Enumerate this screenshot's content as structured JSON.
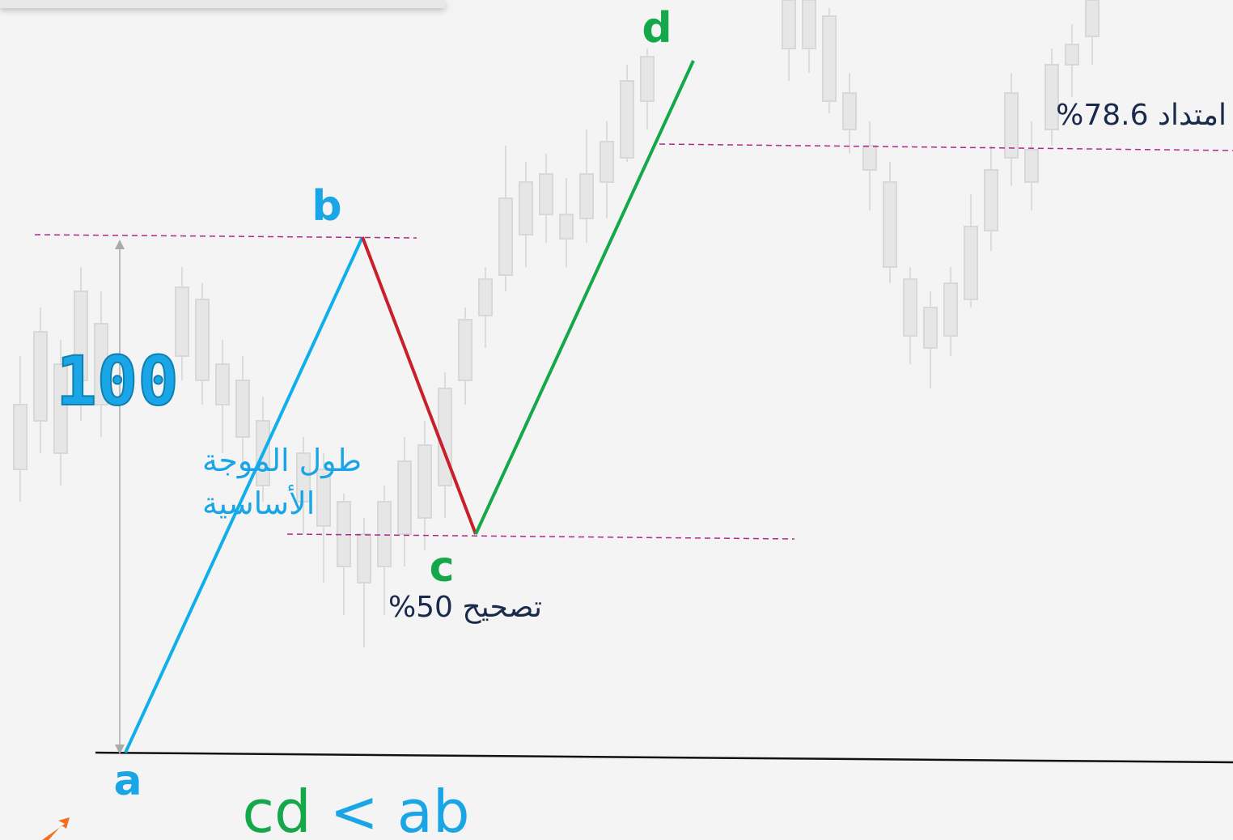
{
  "points": {
    "a": "a",
    "b": "b",
    "c": "c",
    "d": "d"
  },
  "wave_length": {
    "value_label": "100",
    "caption_lines": [
      "طول الموجة",
      "الأساسية"
    ]
  },
  "retracement": "تصحيح 50%",
  "extension": "امتداد 78.6%",
  "rule": {
    "left": "cd",
    "op": "<",
    "right": "ab"
  }
}
